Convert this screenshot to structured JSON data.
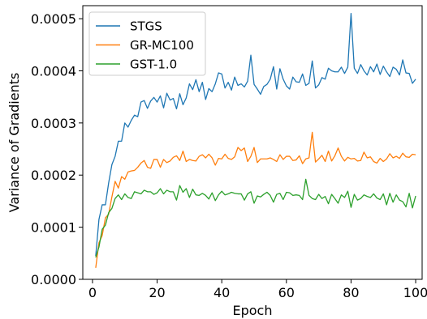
{
  "chart_data": {
    "type": "line",
    "title": "",
    "xlabel": "Epoch",
    "ylabel": "Variance of Gradients",
    "xlim": [
      -3,
      102
    ],
    "ylim": [
      0,
      0.000525
    ],
    "xticks": [
      0,
      20,
      40,
      60,
      80,
      100
    ],
    "xtick_labels": [
      "0",
      "20",
      "40",
      "60",
      "80",
      "100"
    ],
    "yticks": [
      0.0,
      0.0001,
      0.0002,
      0.0003,
      0.0004,
      0.0005
    ],
    "ytick_labels": [
      "0.0000",
      "0.0001",
      "0.0002",
      "0.0003",
      "0.0004",
      "0.0005"
    ],
    "grid": false,
    "legend_position": "upper-left",
    "x": [
      1,
      2,
      3,
      4,
      5,
      6,
      7,
      8,
      9,
      10,
      11,
      12,
      13,
      14,
      15,
      16,
      17,
      18,
      19,
      20,
      21,
      22,
      23,
      24,
      25,
      26,
      27,
      28,
      29,
      30,
      31,
      32,
      33,
      34,
      35,
      36,
      37,
      38,
      39,
      40,
      41,
      42,
      43,
      44,
      45,
      46,
      47,
      48,
      49,
      50,
      51,
      52,
      53,
      54,
      55,
      56,
      57,
      58,
      59,
      60,
      61,
      62,
      63,
      64,
      65,
      66,
      67,
      68,
      69,
      70,
      71,
      72,
      73,
      74,
      75,
      76,
      77,
      78,
      79,
      80,
      81,
      82,
      83,
      84,
      85,
      86,
      87,
      88,
      89,
      90,
      91,
      92,
      93,
      94,
      95,
      96,
      97,
      98,
      99,
      100
    ],
    "series": [
      {
        "name": "STGS",
        "color": "#1f77b4",
        "values": [
          4.5e-05,
          0.000115,
          0.000143,
          0.000143,
          0.000185,
          0.00022,
          0.000236,
          0.000265,
          0.000265,
          0.0003,
          0.000292,
          0.000305,
          0.000315,
          0.000312,
          0.00034,
          0.000343,
          0.000328,
          0.000342,
          0.000349,
          0.00034,
          0.000352,
          0.000329,
          0.000357,
          0.000344,
          0.000347,
          0.000327,
          0.000356,
          0.000335,
          0.000348,
          0.000375,
          0.000364,
          0.000383,
          0.00036,
          0.000378,
          0.000345,
          0.000366,
          0.00036,
          0.000375,
          0.000396,
          0.000394,
          0.000367,
          0.000378,
          0.000363,
          0.000388,
          0.000372,
          0.000375,
          0.000369,
          0.00038,
          0.00043,
          0.000374,
          0.000365,
          0.000355,
          0.00037,
          0.000374,
          0.000384,
          0.000408,
          0.000365,
          0.000404,
          0.000384,
          0.000371,
          0.000365,
          0.000388,
          0.000379,
          0.000378,
          0.000394,
          0.000372,
          0.000376,
          0.000419,
          0.000367,
          0.000373,
          0.000387,
          0.000384,
          0.000405,
          0.0004,
          0.000398,
          0.000398,
          0.000407,
          0.000395,
          0.000407,
          0.00051,
          0.000405,
          0.000395,
          0.000412,
          0.0004,
          0.000392,
          0.000408,
          0.000398,
          0.000413,
          0.000393,
          0.000409,
          0.000398,
          0.000389,
          0.000407,
          0.000403,
          0.000392,
          0.000421,
          0.000396,
          0.000395,
          0.000376,
          0.000384
        ]
      },
      {
        "name": "GR-MC100",
        "color": "#ff7f0e",
        "values": [
          2.2e-05,
          7e-05,
          8.4e-05,
          0.000118,
          0.000125,
          0.000158,
          0.000188,
          0.000175,
          0.000197,
          0.000192,
          0.000206,
          0.000208,
          0.000209,
          0.000215,
          0.000223,
          0.000228,
          0.000215,
          0.000213,
          0.00023,
          0.00023,
          0.000215,
          0.00023,
          0.000224,
          0.000227,
          0.000234,
          0.000237,
          0.000228,
          0.000246,
          0.000226,
          0.00023,
          0.000228,
          0.000227,
          0.000236,
          0.000239,
          0.000233,
          0.00024,
          0.000233,
          0.000219,
          0.000232,
          0.000231,
          0.00024,
          0.000232,
          0.00023,
          0.000235,
          0.000253,
          0.000247,
          0.000252,
          0.000226,
          0.000236,
          0.000253,
          0.000224,
          0.000231,
          0.000231,
          0.000231,
          0.000233,
          0.00023,
          0.000226,
          0.000239,
          0.00023,
          0.000236,
          0.000236,
          0.000228,
          0.000229,
          0.000237,
          0.000222,
          0.000231,
          0.000233,
          0.000282,
          0.000225,
          0.000231,
          0.000238,
          0.000226,
          0.000246,
          0.000227,
          0.000237,
          0.000252,
          0.000236,
          0.000227,
          0.000234,
          0.000231,
          0.000232,
          0.000227,
          0.000228,
          0.000244,
          0.000233,
          0.000235,
          0.000226,
          0.000223,
          0.000232,
          0.000226,
          0.000231,
          0.000241,
          0.000233,
          0.000236,
          0.000232,
          0.000242,
          0.000235,
          0.000234,
          0.00024,
          0.000239
        ]
      },
      {
        "name": "GST-1.0",
        "color": "#2ca02c",
        "values": [
          4.2e-05,
          6.2e-05,
          9.6e-05,
          0.000104,
          0.000128,
          0.000136,
          0.000155,
          0.000162,
          0.000153,
          0.000164,
          0.000157,
          0.000155,
          0.000168,
          0.000166,
          0.000164,
          0.000171,
          0.000168,
          0.000168,
          0.000163,
          0.000166,
          0.000174,
          0.000164,
          0.000171,
          0.000168,
          0.000168,
          0.000152,
          0.00018,
          0.000167,
          0.000174,
          0.000157,
          0.000173,
          0.000162,
          0.000161,
          0.000165,
          0.000161,
          0.000154,
          0.000166,
          0.000151,
          0.000162,
          0.000169,
          0.000162,
          0.000164,
          0.000167,
          0.000165,
          0.000164,
          0.000164,
          0.000152,
          0.000164,
          0.000168,
          0.000146,
          0.00016,
          0.000158,
          0.000163,
          0.000167,
          0.000161,
          0.000148,
          0.000163,
          0.000165,
          0.000153,
          0.000167,
          0.000166,
          0.000161,
          0.000162,
          0.000161,
          0.000153,
          0.000192,
          0.000161,
          0.000155,
          0.000153,
          0.000163,
          0.000155,
          0.000159,
          0.000145,
          0.000163,
          0.000155,
          0.000146,
          0.000162,
          0.000157,
          0.000169,
          0.000138,
          0.000163,
          0.000152,
          0.000155,
          0.000162,
          0.000159,
          0.000157,
          0.000164,
          0.000156,
          0.000153,
          0.000164,
          0.000143,
          0.000165,
          0.000148,
          0.000162,
          0.000152,
          0.000149,
          0.000139,
          0.000165,
          0.000137,
          0.00016
        ]
      }
    ]
  }
}
